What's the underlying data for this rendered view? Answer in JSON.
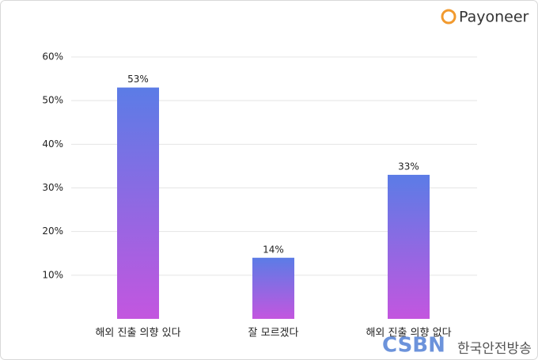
{
  "chart_data": {
    "type": "bar",
    "categories": [
      "해외 진출 의향 있다",
      "잘 모르겠다",
      "해외 진출 의향 없다"
    ],
    "values": [
      53,
      14,
      33
    ],
    "value_labels": [
      "53%",
      "14%",
      "33%"
    ],
    "color": {
      "top": "#5b7ce6",
      "bottom": "#c356df"
    },
    "ylim": [
      0,
      60
    ],
    "yticks": [
      {
        "value": 10,
        "label": "10%"
      },
      {
        "value": 20,
        "label": "20%"
      },
      {
        "value": 30,
        "label": "30%"
      },
      {
        "value": 40,
        "label": "40%"
      },
      {
        "value": 50,
        "label": "50%"
      },
      {
        "value": 60,
        "label": "60%"
      }
    ],
    "grid": true
  },
  "logo": "Payoneer",
  "watermark": {
    "mark": "CSBN",
    "text": "한국안전방송"
  }
}
